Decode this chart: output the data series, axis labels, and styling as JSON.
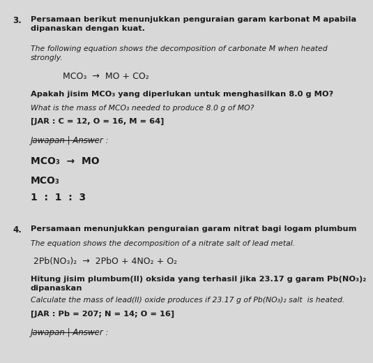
{
  "bg_color": "#d8d8d8",
  "text_color": "#1a1a1a",
  "page_width": 4.56,
  "page_height": 5.03,
  "q3_number": "3.",
  "q3_bold_text": "Persamaan berikut menunjukkan penguraian garam karbonat M apabila\ndipanaskan dengan kuat.",
  "q3_italic_text": "The following equation shows the decomposition of carbonate M when heated\nstrongly.",
  "q3_equation": "MCO₃  →  MO + CO₂",
  "q3_question_malay": "Apakah jisim MCO₃ yang diperlukan untuk menghasilkan 8.0 g MO?",
  "q3_question_italic": "What is the mass of MCO₃ needed to produce 8.0 g of MO?",
  "q3_jar": "[JAR : C = 12, O = 16, M = 64]",
  "q3_jawapan_label": "Jawapan | Answer :",
  "q3_answer_line1": "MCO₃  →  MO",
  "q3_answer_line2": "MCO₃",
  "q3_answer_line3": "1  :  1  :  3",
  "q4_number": "4.",
  "q4_bold_text": "Persamaan menunjukkan penguraian garam nitrat bagi logam plumbum",
  "q4_italic_text": "The equation shows the decomposition of a nitrate salt of lead metal.",
  "q4_equation": "2Pb(NO₃)₂  →  2PbO + 4NO₂ + O₂",
  "q4_question_malay": "Hitung jisim plumbum(II) oksida yang terhasil jika 23.17 g garam Pb(NO₃)₂\ndipanaskan",
  "q4_question_italic": "Calculate the mass of lead(II) oxide produces if 23.17 g of Pb(NO₃)₂ salt  is heated.",
  "q4_jar": "[JAR : Pb = 207; N = 14; O = 16]",
  "q4_jawapan_label": "Jawapan | Answer :"
}
